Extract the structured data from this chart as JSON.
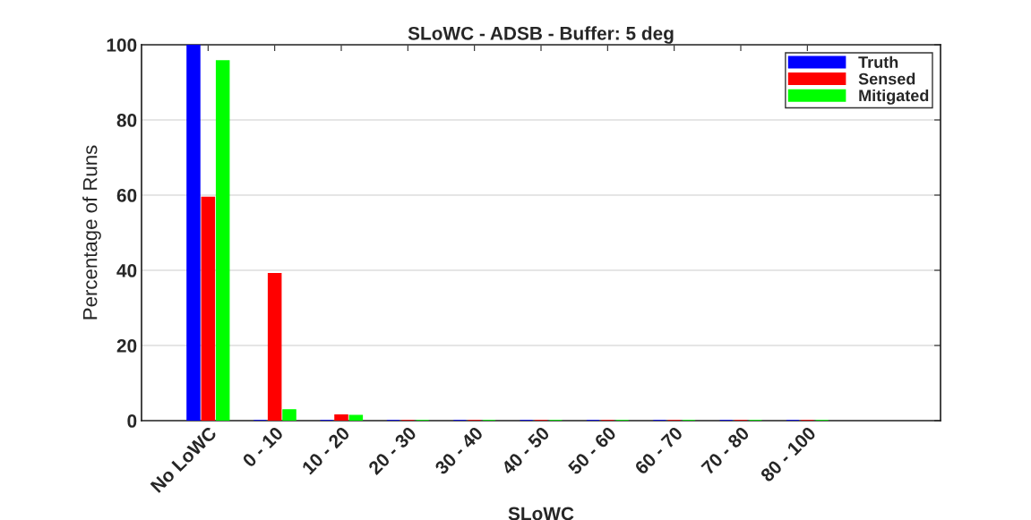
{
  "chart_data": {
    "type": "bar",
    "title": "SLoWC - ADSB - Buffer: 5 deg",
    "xlabel": "SLoWC",
    "ylabel": "Percentage of Runs",
    "categories": [
      "No LoWC",
      "0 - 10",
      "10 - 20",
      "20 - 30",
      "30 - 40",
      "40 - 50",
      "50 - 60",
      "60 - 70",
      "70 - 80",
      "80 - 100"
    ],
    "series": [
      {
        "name": "Truth",
        "color": "#0000ff",
        "values": [
          100,
          0,
          0,
          0,
          0,
          0,
          0,
          0,
          0,
          0
        ]
      },
      {
        "name": "Sensed",
        "color": "#ff0000",
        "values": [
          59.4,
          39.1,
          1.5,
          0,
          0,
          0,
          0,
          0,
          0,
          0
        ]
      },
      {
        "name": "Mitigated",
        "color": "#00ff00",
        "values": [
          95.7,
          2.9,
          1.4,
          0,
          0,
          0,
          0,
          0,
          0,
          0
        ]
      }
    ],
    "ylim": [
      0,
      100
    ],
    "yticks": [
      0,
      20,
      40,
      60,
      80,
      100
    ],
    "grid": "y",
    "legend": "top right"
  }
}
